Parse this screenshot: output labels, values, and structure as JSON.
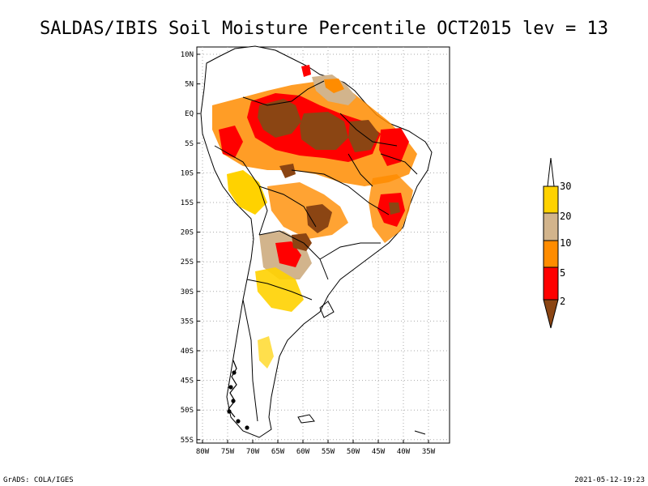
{
  "title": "SALDAS/IBIS Soil Moisture Percentile OCT2015 lev = 13",
  "footer_left": "GrADS: COLA/IGES",
  "footer_right": "2021-05-12-19:23",
  "lat_labels": [
    "10N",
    "5N",
    "EQ",
    "5S",
    "10S",
    "15S",
    "20S",
    "25S",
    "30S",
    "35S",
    "40S",
    "45S",
    "50S",
    "55S"
  ],
  "lon_labels": [
    "80W",
    "75W",
    "70W",
    "65W",
    "60W",
    "55W",
    "50W",
    "45W",
    "40W",
    "35W"
  ],
  "colorbar": {
    "labels": [
      "30",
      "20",
      "10",
      "5",
      "2"
    ],
    "colors": [
      "#ffffff",
      "#ffd200",
      "#d2b48c",
      "#ff8c00",
      "#ff0000",
      "#8b4513"
    ],
    "icon": "colorbar-triangle-icon"
  },
  "colors": {
    "dry_extreme": "#8b4513",
    "dry_severe": "#ff0000",
    "dry_moderate": "#ff8c00",
    "dry_mild": "#d2b48c",
    "abnormal": "#ffd200",
    "land": "#ffffff",
    "border": "#000000",
    "grid": "#aaaaaa"
  }
}
